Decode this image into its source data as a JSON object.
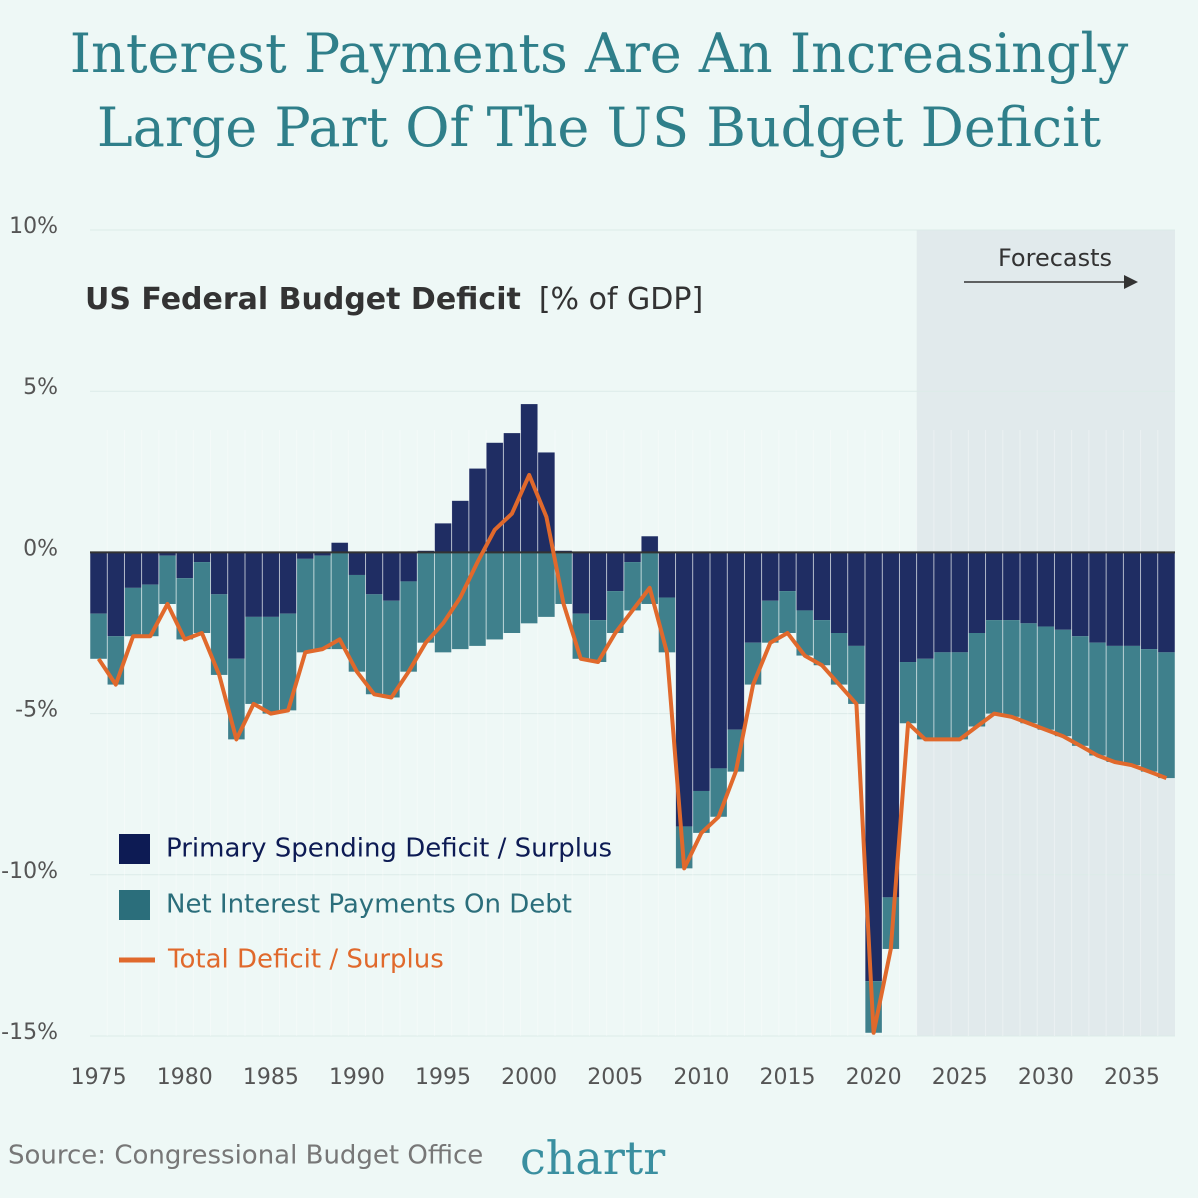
{
  "chart_data": {
    "type": "stacked-bar-line",
    "title": [
      "Interest Payments Are An Increasingly",
      "Large Part Of The US Budget Deficit"
    ],
    "subtitle": "US Federal Budget Deficit",
    "unit_label": "[% of GDP]",
    "source": "Source: Congressional Budget Office",
    "logo": "chartr",
    "forecast": {
      "from": 2022.5,
      "label": "Forecasts"
    },
    "x": [
      1975,
      1976,
      1977,
      1978,
      1979,
      1980,
      1981,
      1982,
      1983,
      1984,
      1985,
      1986,
      1987,
      1988,
      1989,
      1990,
      1991,
      1992,
      1993,
      1994,
      1995,
      1996,
      1997,
      1998,
      1999,
      2000,
      2001,
      2002,
      2003,
      2004,
      2005,
      2006,
      2007,
      2008,
      2009,
      2010,
      2011,
      2012,
      2013,
      2014,
      2015,
      2016,
      2017,
      2018,
      2019,
      2020,
      2021,
      2022,
      2023,
      2024,
      2025,
      2026,
      2027,
      2028,
      2029,
      2030,
      2031,
      2032,
      2033,
      2034,
      2035,
      2036,
      2037
    ],
    "series": [
      {
        "name": "Primary Spending Deficit / Surplus",
        "color": "#1f2d63",
        "kind": "bar",
        "values": [
          -1.9,
          -2.6,
          -1.1,
          -1.0,
          -0.1,
          -0.8,
          -0.3,
          -1.3,
          -3.3,
          -2.0,
          -2.0,
          -1.9,
          -0.2,
          -0.1,
          0.3,
          -0.7,
          -1.3,
          -1.5,
          -0.9,
          0.05,
          0.9,
          1.6,
          2.6,
          3.4,
          3.7,
          4.6,
          3.1,
          0.05,
          -1.9,
          -2.1,
          -1.2,
          -0.3,
          0.5,
          -1.4,
          -8.5,
          -7.4,
          -6.7,
          -5.5,
          -2.8,
          -1.5,
          -1.2,
          -1.8,
          -2.1,
          -2.5,
          -2.9,
          -13.3,
          -10.7,
          -3.4,
          -3.3,
          -3.1,
          -3.1,
          -2.5,
          -2.1,
          -2.1,
          -2.2,
          -2.3,
          -2.4,
          -2.6,
          -2.8,
          -2.9,
          -2.9,
          -3.0,
          -3.1
        ]
      },
      {
        "name": "Net Interest Payments On Debt",
        "color": "#3f808c",
        "kind": "bar",
        "values": [
          -1.4,
          -1.5,
          -1.5,
          -1.6,
          -1.5,
          -1.9,
          -2.2,
          -2.5,
          -2.5,
          -2.7,
          -3.0,
          -3.0,
          -2.9,
          -2.9,
          -3.0,
          -3.0,
          -3.1,
          -3.0,
          -2.8,
          -2.8,
          -3.1,
          -3.0,
          -2.9,
          -2.7,
          -2.5,
          -2.2,
          -2.0,
          -1.6,
          -1.4,
          -1.3,
          -1.3,
          -1.5,
          -1.6,
          -1.7,
          -1.3,
          -1.3,
          -1.5,
          -1.3,
          -1.3,
          -1.3,
          -1.3,
          -1.4,
          -1.4,
          -1.6,
          -1.8,
          -1.6,
          -1.6,
          -1.9,
          -2.5,
          -2.7,
          -2.7,
          -2.9,
          -2.9,
          -3.0,
          -3.1,
          -3.2,
          -3.3,
          -3.4,
          -3.5,
          -3.6,
          -3.7,
          -3.8,
          -3.9
        ]
      },
      {
        "name": "Total Deficit / Surplus",
        "color": "#e0692c",
        "kind": "line",
        "values": [
          -3.3,
          -4.1,
          -2.6,
          -2.6,
          -1.6,
          -2.7,
          -2.5,
          -3.8,
          -5.8,
          -4.7,
          -5.0,
          -4.9,
          -3.1,
          -3.0,
          -2.7,
          -3.7,
          -4.4,
          -4.5,
          -3.7,
          -2.8,
          -2.2,
          -1.4,
          -0.3,
          0.7,
          1.2,
          2.4,
          1.1,
          -1.6,
          -3.3,
          -3.4,
          -2.5,
          -1.8,
          -1.1,
          -3.1,
          -9.8,
          -8.7,
          -8.2,
          -6.8,
          -4.1,
          -2.8,
          -2.5,
          -3.2,
          -3.5,
          -4.1,
          -4.7,
          -14.9,
          -12.3,
          -5.3,
          -5.8,
          -5.8,
          -5.8,
          -5.4,
          -5.0,
          -5.1,
          -5.3,
          -5.5,
          -5.7,
          -6.0,
          -6.3,
          -6.5,
          -6.6,
          -6.8,
          -7.0
        ]
      }
    ],
    "xlim": [
      1974.5,
      2037.5
    ],
    "xticks": [
      1975,
      1980,
      1985,
      1990,
      1995,
      2000,
      2005,
      2010,
      2015,
      2020,
      2025,
      2030,
      2035
    ],
    "ylim": [
      -15,
      10
    ],
    "yticks": [
      {
        "value": -15,
        "label": "-15%"
      },
      {
        "value": -10,
        "label": "-10%"
      },
      {
        "value": -5,
        "label": "-5%"
      },
      {
        "value": 0,
        "label": "0%"
      },
      {
        "value": 5,
        "label": "5%"
      },
      {
        "value": 10,
        "label": "10%"
      }
    ],
    "grid": true,
    "legend": "lower-left"
  }
}
